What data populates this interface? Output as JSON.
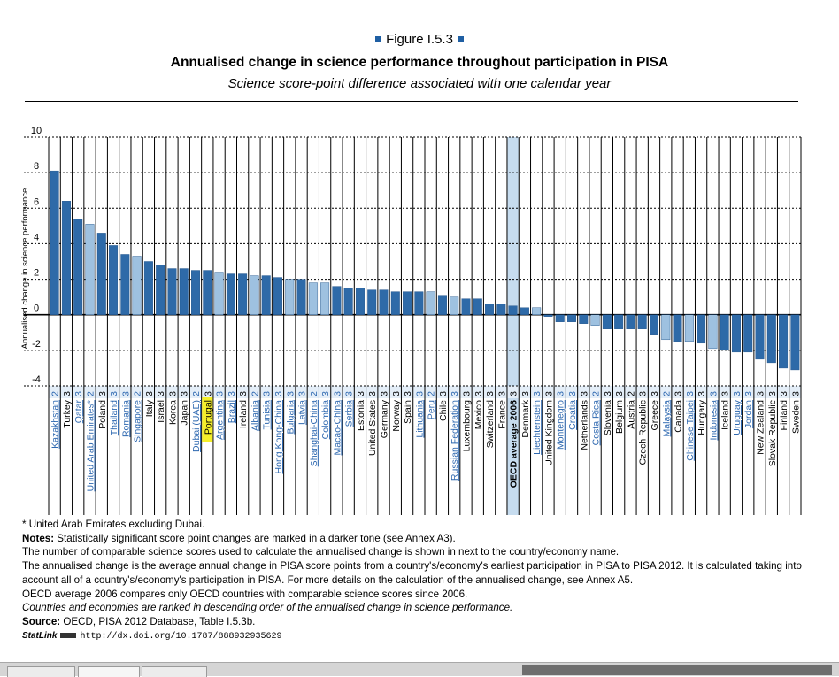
{
  "figure_label": "Figure I.5.3",
  "chart_data": {
    "type": "bar",
    "title": "Annualised change in science performance throughout participation in PISA",
    "subtitle": "Science score-point difference associated with one calendar year",
    "ylabel": "Annualised change in science performance",
    "ylim": [
      -4,
      10
    ],
    "yticks": [
      -4,
      -2,
      0,
      2,
      4,
      6,
      8,
      10
    ],
    "grid": true,
    "colors": {
      "significant": "#2e6aa8",
      "not_significant": "#9ec1e0",
      "highlight_band": "#c6dcef",
      "label_link": "#2e68b0",
      "label_oecd": "#000000",
      "highlight_label": "#f4ef2a"
    },
    "categories": [
      {
        "name": "Kazakhstan",
        "value": 8.1,
        "n": "2",
        "significant": true,
        "label_style": "link"
      },
      {
        "name": "Turkey",
        "value": 6.4,
        "n": "3",
        "significant": true,
        "label_style": "oecd"
      },
      {
        "name": "Qatar",
        "value": 5.4,
        "n": "3",
        "significant": true,
        "label_style": "link"
      },
      {
        "name": "United Arab Emirates*",
        "value": 5.1,
        "n": "2",
        "significant": false,
        "label_style": "link"
      },
      {
        "name": "Poland",
        "value": 4.6,
        "n": "3",
        "significant": true,
        "label_style": "oecd"
      },
      {
        "name": "Thailand",
        "value": 3.9,
        "n": "3",
        "significant": true,
        "label_style": "link"
      },
      {
        "name": "Romania",
        "value": 3.4,
        "n": "3",
        "significant": true,
        "label_style": "link"
      },
      {
        "name": "Singapore",
        "value": 3.3,
        "n": "2",
        "significant": false,
        "label_style": "link"
      },
      {
        "name": "Italy",
        "value": 3.0,
        "n": "3",
        "significant": true,
        "label_style": "oecd"
      },
      {
        "name": "Israel",
        "value": 2.8,
        "n": "3",
        "significant": true,
        "label_style": "oecd"
      },
      {
        "name": "Korea",
        "value": 2.6,
        "n": "3",
        "significant": true,
        "label_style": "oecd"
      },
      {
        "name": "Japan",
        "value": 2.6,
        "n": "3",
        "significant": true,
        "label_style": "oecd"
      },
      {
        "name": "Dubai (UAE)",
        "value": 2.5,
        "n": "2",
        "significant": true,
        "label_style": "link"
      },
      {
        "name": "Portugal",
        "value": 2.5,
        "n": "3",
        "significant": true,
        "label_style": "highlight"
      },
      {
        "name": "Argentina",
        "value": 2.4,
        "n": "3",
        "significant": false,
        "label_style": "link"
      },
      {
        "name": "Brazil",
        "value": 2.3,
        "n": "3",
        "significant": true,
        "label_style": "link"
      },
      {
        "name": "Ireland",
        "value": 2.3,
        "n": "3",
        "significant": true,
        "label_style": "oecd"
      },
      {
        "name": "Albania",
        "value": 2.2,
        "n": "2",
        "significant": false,
        "label_style": "link"
      },
      {
        "name": "Tunisia",
        "value": 2.2,
        "n": "3",
        "significant": true,
        "label_style": "link"
      },
      {
        "name": "Hong Kong-China",
        "value": 2.1,
        "n": "3",
        "significant": true,
        "label_style": "link"
      },
      {
        "name": "Bulgaria",
        "value": 2.0,
        "n": "3",
        "significant": false,
        "label_style": "link"
      },
      {
        "name": "Latvia",
        "value": 2.0,
        "n": "3",
        "significant": true,
        "label_style": "link"
      },
      {
        "name": "Shanghai-China",
        "value": 1.8,
        "n": "2",
        "significant": false,
        "label_style": "link"
      },
      {
        "name": "Colombia",
        "value": 1.8,
        "n": "3",
        "significant": false,
        "label_style": "link"
      },
      {
        "name": "Macao-China",
        "value": 1.6,
        "n": "3",
        "significant": true,
        "label_style": "link"
      },
      {
        "name": "Serbia",
        "value": 1.5,
        "n": "3",
        "significant": true,
        "label_style": "link"
      },
      {
        "name": "Estonia",
        "value": 1.5,
        "n": "3",
        "significant": true,
        "label_style": "oecd"
      },
      {
        "name": "United States",
        "value": 1.4,
        "n": "3",
        "significant": true,
        "label_style": "oecd"
      },
      {
        "name": "Germany",
        "value": 1.4,
        "n": "3",
        "significant": true,
        "label_style": "oecd"
      },
      {
        "name": "Norway",
        "value": 1.3,
        "n": "3",
        "significant": true,
        "label_style": "oecd"
      },
      {
        "name": "Spain",
        "value": 1.3,
        "n": "3",
        "significant": true,
        "label_style": "oecd"
      },
      {
        "name": "Lithuania",
        "value": 1.3,
        "n": "3",
        "significant": true,
        "label_style": "link"
      },
      {
        "name": "Peru",
        "value": 1.3,
        "n": "2",
        "significant": false,
        "label_style": "link"
      },
      {
        "name": "Chile",
        "value": 1.1,
        "n": "3",
        "significant": true,
        "label_style": "oecd"
      },
      {
        "name": "Russian Federation",
        "value": 1.0,
        "n": "3",
        "significant": false,
        "label_style": "link"
      },
      {
        "name": "Luxembourg",
        "value": 0.9,
        "n": "3",
        "significant": true,
        "label_style": "oecd"
      },
      {
        "name": "Mexico",
        "value": 0.9,
        "n": "3",
        "significant": true,
        "label_style": "oecd"
      },
      {
        "name": "Switzerland",
        "value": 0.6,
        "n": "3",
        "significant": true,
        "label_style": "oecd"
      },
      {
        "name": "France",
        "value": 0.6,
        "n": "3",
        "significant": true,
        "label_style": "oecd"
      },
      {
        "name": "OECD average 2006",
        "value": 0.5,
        "n": "3",
        "significant": true,
        "label_style": "oecd_avg"
      },
      {
        "name": "Denmark",
        "value": 0.4,
        "n": "3",
        "significant": true,
        "label_style": "oecd"
      },
      {
        "name": "Liechtenstein",
        "value": 0.4,
        "n": "3",
        "significant": false,
        "label_style": "link"
      },
      {
        "name": "United Kingdom",
        "value": -0.1,
        "n": "3",
        "significant": true,
        "label_style": "oecd"
      },
      {
        "name": "Montenegro",
        "value": -0.4,
        "n": "3",
        "significant": true,
        "label_style": "link"
      },
      {
        "name": "Croatia",
        "value": -0.4,
        "n": "3",
        "significant": true,
        "label_style": "link"
      },
      {
        "name": "Netherlands",
        "value": -0.5,
        "n": "3",
        "significant": true,
        "label_style": "oecd"
      },
      {
        "name": "Costa Rica",
        "value": -0.6,
        "n": "2",
        "significant": false,
        "label_style": "link"
      },
      {
        "name": "Slovenia",
        "value": -0.8,
        "n": "3",
        "significant": true,
        "label_style": "oecd"
      },
      {
        "name": "Belgium",
        "value": -0.8,
        "n": "3",
        "significant": true,
        "label_style": "oecd"
      },
      {
        "name": "Austria",
        "value": -0.8,
        "n": "2",
        "significant": true,
        "label_style": "oecd"
      },
      {
        "name": "Czech Republic",
        "value": -0.8,
        "n": "3",
        "significant": true,
        "label_style": "oecd"
      },
      {
        "name": "Greece",
        "value": -1.1,
        "n": "3",
        "significant": true,
        "label_style": "oecd"
      },
      {
        "name": "Malaysia",
        "value": -1.4,
        "n": "2",
        "significant": false,
        "label_style": "link"
      },
      {
        "name": "Canada",
        "value": -1.5,
        "n": "3",
        "significant": true,
        "label_style": "oecd"
      },
      {
        "name": "Chinese Taipei",
        "value": -1.5,
        "n": "3",
        "significant": false,
        "label_style": "link"
      },
      {
        "name": "Hungary",
        "value": -1.6,
        "n": "3",
        "significant": true,
        "label_style": "oecd"
      },
      {
        "name": "Indonesia",
        "value": -1.9,
        "n": "3",
        "significant": false,
        "label_style": "link"
      },
      {
        "name": "Iceland",
        "value": -2.0,
        "n": "3",
        "significant": true,
        "label_style": "oecd"
      },
      {
        "name": "Uruguay",
        "value": -2.1,
        "n": "3",
        "significant": true,
        "label_style": "link"
      },
      {
        "name": "Jordan",
        "value": -2.1,
        "n": "3",
        "significant": true,
        "label_style": "link"
      },
      {
        "name": "New Zealand",
        "value": -2.5,
        "n": "3",
        "significant": true,
        "label_style": "oecd"
      },
      {
        "name": "Slovak Republic",
        "value": -2.7,
        "n": "3",
        "significant": true,
        "label_style": "oecd"
      },
      {
        "name": "Finland",
        "value": -3.0,
        "n": "3",
        "significant": true,
        "label_style": "oecd"
      },
      {
        "name": "Sweden",
        "value": -3.1,
        "n": "3",
        "significant": true,
        "label_style": "oecd"
      }
    ]
  },
  "notes": {
    "asterisk": "* United Arab Emirates excluding Dubai.",
    "notes_label": "Notes:",
    "notes_text": " Statistically significant score point changes are marked in a darker tone (see Annex A3).",
    "line2": "The number of comparable science scores used to calculate the annualised change is shown in next to the country/economy name.",
    "line3": "The annualised change is the average annual change in PISA score points from a country's/economy's earliest participation in PISA to PISA 2012. It is calculated taking into account all of a country's/economy's participation in PISA. For more details on the calculation of the annualised change, see Annex A5.",
    "line4": "OECD average 2006 compares only OECD countries with comparable science scores since 2006.",
    "line5": "Countries and economies are ranked in descending order of the annualised change in science performance.",
    "source_label": "Source:",
    "source_text": " OECD, PISA 2012 Database, Table I.5.3b.",
    "statlink_label": "StatLink",
    "statlink_url": "http://dx.doi.org/10.1787/888932935629"
  }
}
